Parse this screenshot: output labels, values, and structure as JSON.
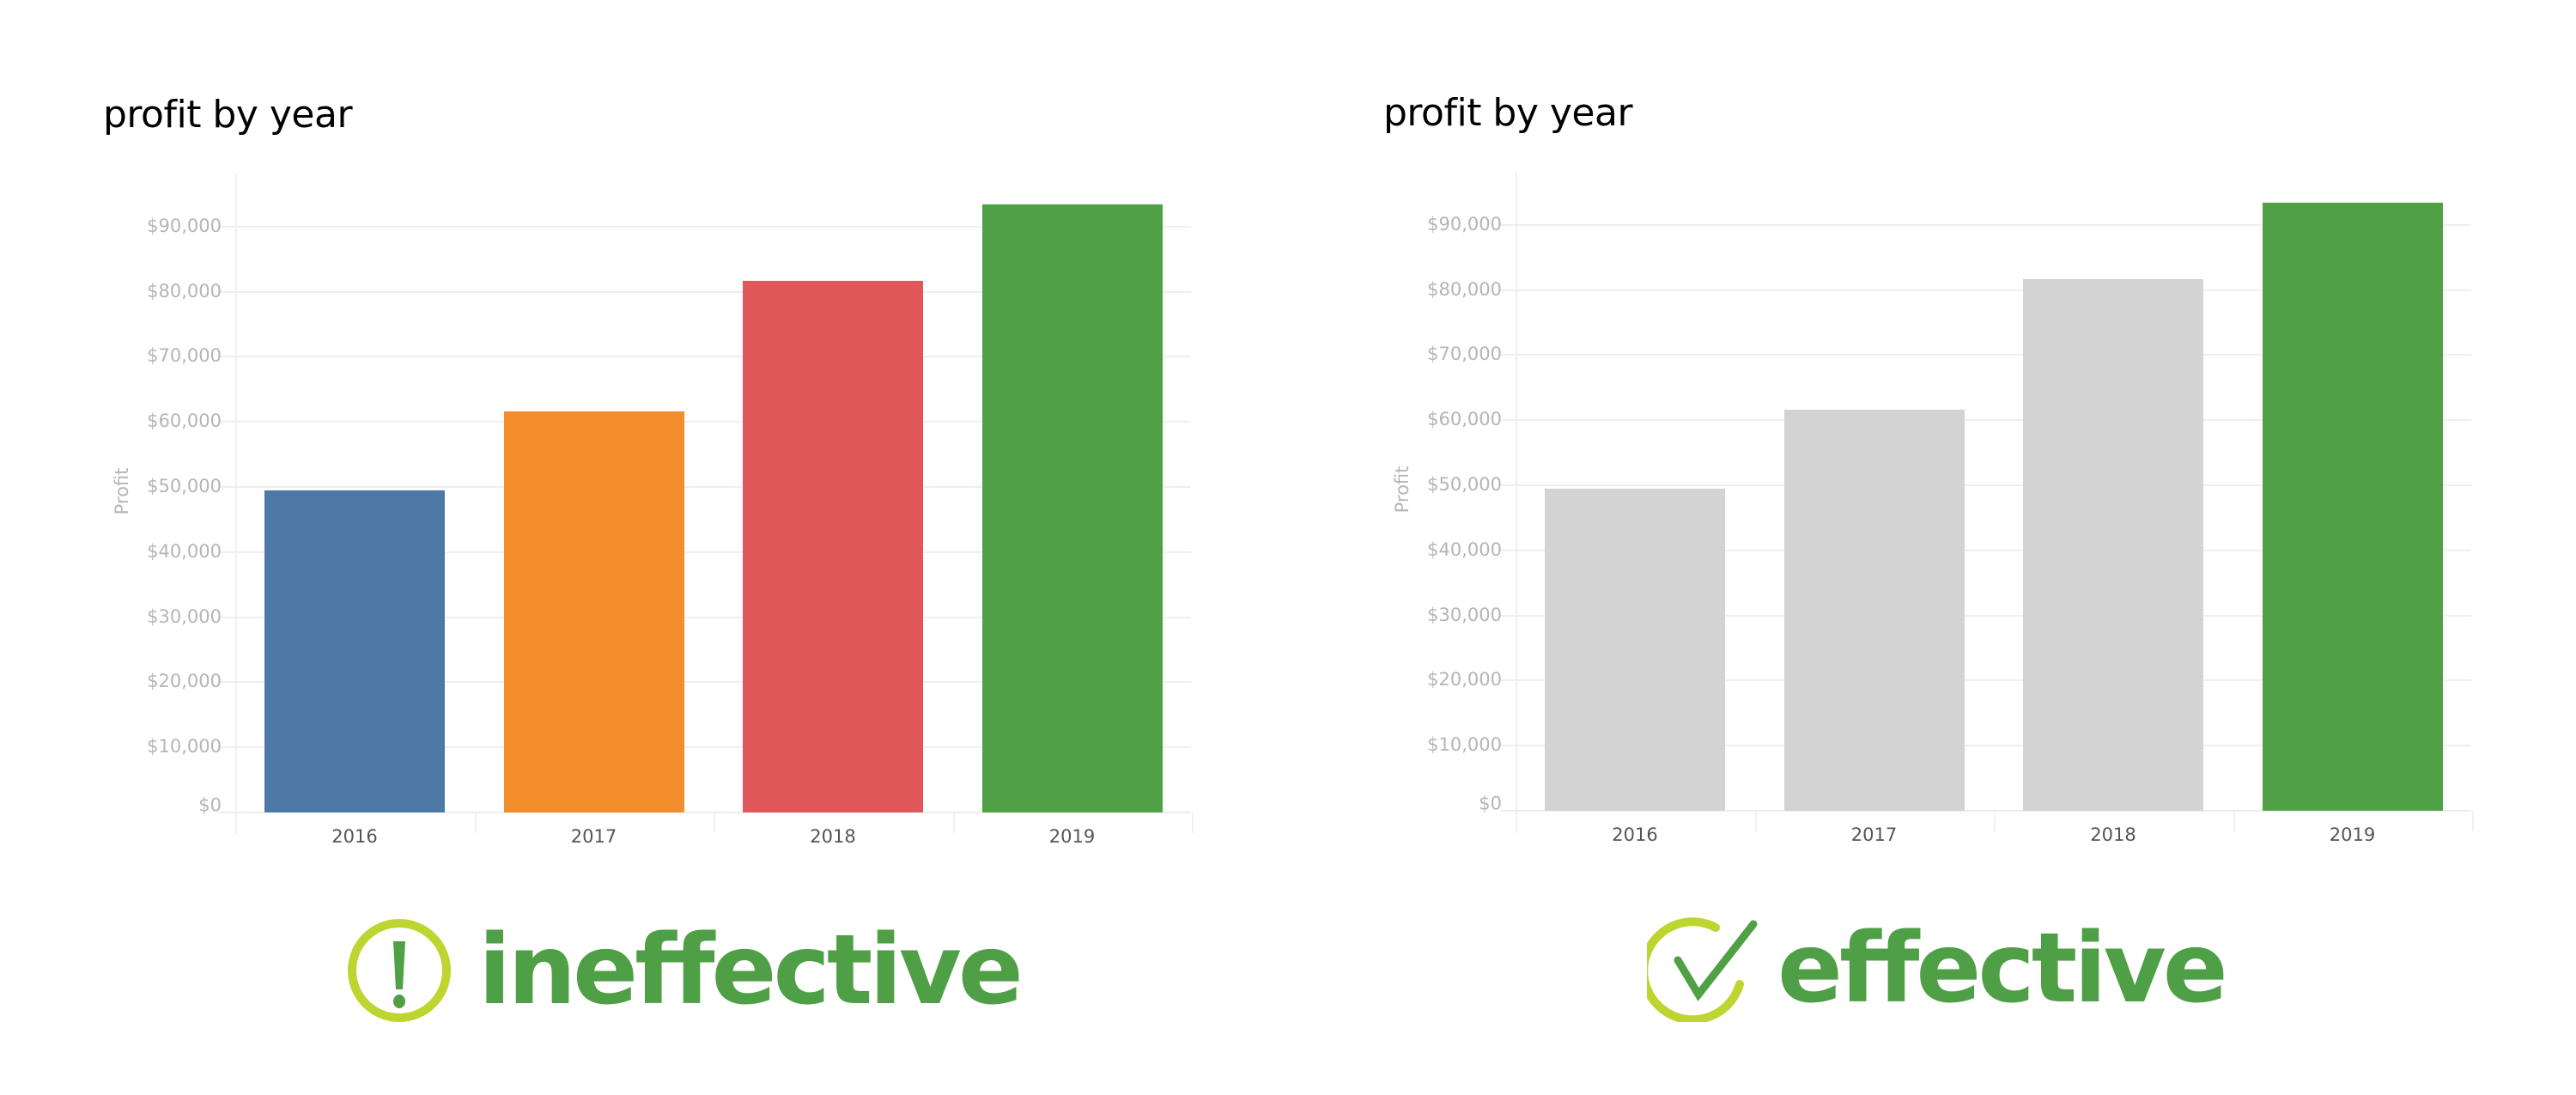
{
  "colors": {
    "title": "#000000",
    "axis_text": "#b5b5b5",
    "category_text": "#555555",
    "gridline": "#efefef",
    "verdict_text": "#4f9f46",
    "verdict_icon": "#bed530",
    "muted_bar": "#d3d3d3"
  },
  "panels": [
    {
      "title": "profit by year",
      "y_axis_label": "Profit",
      "verdict": {
        "label": "ineffective",
        "icon": "exclamation-circle-icon"
      },
      "bar_colors": [
        "#4e79a7",
        "#f28e2b",
        "#e05759",
        "#50a046"
      ]
    },
    {
      "title": "profit by year",
      "y_axis_label": "Profit",
      "verdict": {
        "label": "effective",
        "icon": "check-circle-icon"
      },
      "bar_colors": [
        "#d3d3d3",
        "#d3d3d3",
        "#d3d3d3",
        "#50a046"
      ]
    }
  ],
  "chart_data": [
    {
      "type": "bar",
      "title": "profit by year",
      "xlabel": "",
      "ylabel": "Profit",
      "categories": [
        "2016",
        "2017",
        "2018",
        "2019"
      ],
      "values": [
        49500,
        61600,
        81700,
        93400
      ],
      "colors": [
        "#4e79a7",
        "#f28e2b",
        "#e05759",
        "#50a046"
      ],
      "yticks": [
        "$0",
        "$10,000",
        "$20,000",
        "$30,000",
        "$40,000",
        "$50,000",
        "$60,000",
        "$70,000",
        "$80,000",
        "$90,000"
      ],
      "ylim": [
        0,
        98000
      ],
      "grid": true,
      "legend": "none",
      "annotation": "ineffective"
    },
    {
      "type": "bar",
      "title": "profit by year",
      "xlabel": "",
      "ylabel": "Profit",
      "categories": [
        "2016",
        "2017",
        "2018",
        "2019"
      ],
      "values": [
        49500,
        61600,
        81700,
        93400
      ],
      "colors": [
        "#d3d3d3",
        "#d3d3d3",
        "#d3d3d3",
        "#50a046"
      ],
      "yticks": [
        "$0",
        "$10,000",
        "$20,000",
        "$30,000",
        "$40,000",
        "$50,000",
        "$60,000",
        "$70,000",
        "$80,000",
        "$90,000"
      ],
      "ylim": [
        0,
        98000
      ],
      "grid": true,
      "legend": "none",
      "annotation": "effective"
    }
  ]
}
